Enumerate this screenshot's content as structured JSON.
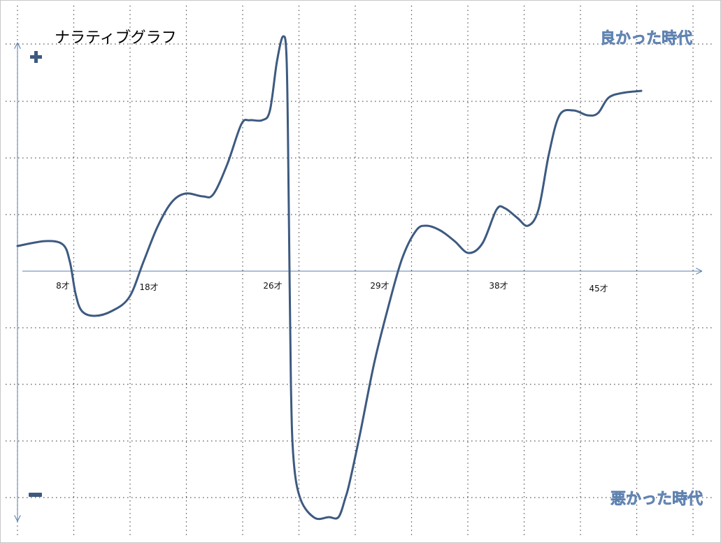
{
  "title": "ナラティブグラフ",
  "top_label": "良かった時代",
  "bottom_label": "悪かった時代",
  "age_labels": [
    "8才",
    "18才",
    "26才",
    "29才",
    "38才",
    "45才"
  ]
}
